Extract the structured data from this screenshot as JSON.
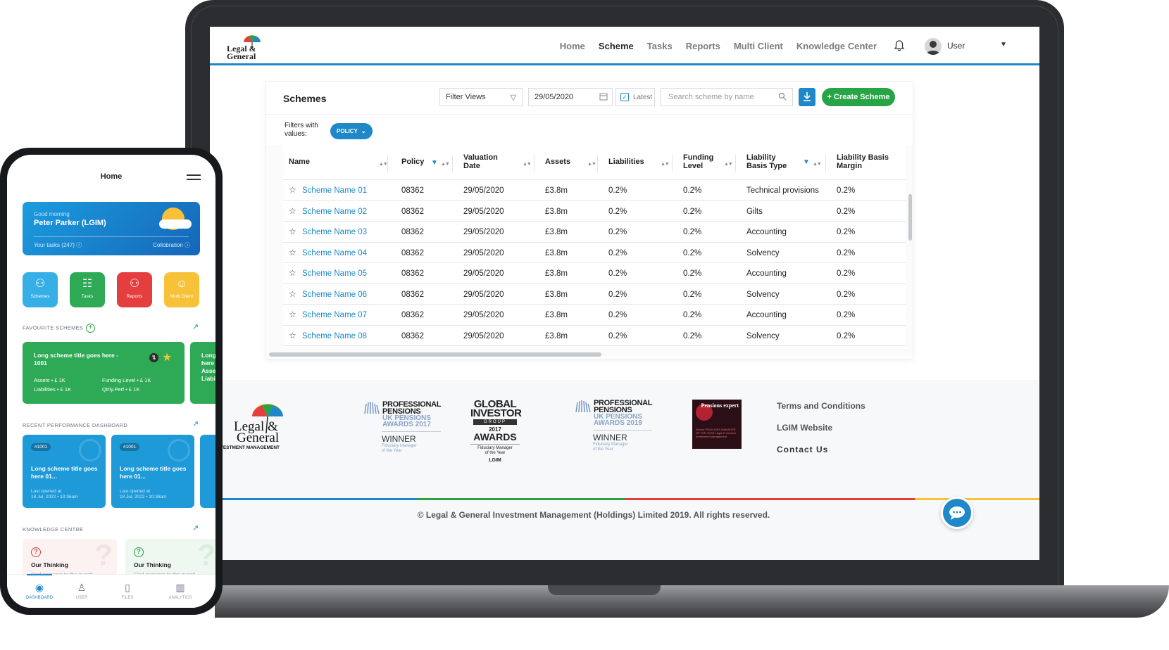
{
  "colors": {
    "primary": "#1e88c8",
    "create_green": "#27a445",
    "fav_green": "#2eaa57",
    "red": "#e53e3e",
    "yellow": "#f8c238"
  },
  "laptop": {
    "brand": {
      "line1": "Legal &",
      "line2": "General"
    },
    "nav": {
      "links": [
        {
          "label": "Home"
        },
        {
          "label": "Scheme",
          "active": true
        },
        {
          "label": "Tasks"
        },
        {
          "label": "Reports"
        },
        {
          "label": "Multi Client"
        },
        {
          "label": "Knowledge Center"
        }
      ],
      "icons": {
        "notifications": "bell-icon",
        "user": "user-avatar",
        "caret": "caret-down-icon"
      },
      "user_name": "User"
    },
    "schemes": {
      "title": "Schemes",
      "filter_views": "Filter Views",
      "date": "29/05/2020",
      "latest_label": "Latest",
      "latest_checked": true,
      "search_placeholder": "Search scheme by name",
      "create_label": "+ Create Scheme",
      "filters_label": "Filters with values:",
      "policy_chip": "POLICY",
      "columns": [
        "Name",
        "Policy",
        "Valuation Date",
        "Assets",
        "Liabilities",
        "Funding Level",
        "Liability Basis Type",
        "Liability Basis Margin"
      ],
      "filtered_columns": [
        "Policy",
        "Liability Basis Type"
      ],
      "rows": [
        {
          "name": "Scheme Name 01",
          "policy": "08362",
          "valuation_date": "29/05/2020",
          "assets": "£3.8m",
          "liabilities": "0.2%",
          "funding_level": "0.2%",
          "basis_type": "Technical provisions",
          "basis_margin": "0.2%"
        },
        {
          "name": "Scheme Name 02",
          "policy": "08362",
          "valuation_date": "29/05/2020",
          "assets": "£3.8m",
          "liabilities": "0.2%",
          "funding_level": "0.2%",
          "basis_type": "Gilts",
          "basis_margin": "0.2%"
        },
        {
          "name": "Scheme Name 03",
          "policy": "08362",
          "valuation_date": "29/05/2020",
          "assets": "£3.8m",
          "liabilities": "0.2%",
          "funding_level": "0.2%",
          "basis_type": "Accounting",
          "basis_margin": "0.2%"
        },
        {
          "name": "Scheme Name 04",
          "policy": "08362",
          "valuation_date": "29/05/2020",
          "assets": "£3.8m",
          "liabilities": "0.2%",
          "funding_level": "0.2%",
          "basis_type": "Solvency",
          "basis_margin": "0.2%"
        },
        {
          "name": "Scheme Name 05",
          "policy": "08362",
          "valuation_date": "29/05/2020",
          "assets": "£3.8m",
          "liabilities": "0.2%",
          "funding_level": "0.2%",
          "basis_type": "Accounting",
          "basis_margin": "0.2%"
        },
        {
          "name": "Scheme Name 06",
          "policy": "08362",
          "valuation_date": "29/05/2020",
          "assets": "£3.8m",
          "liabilities": "0.2%",
          "funding_level": "0.2%",
          "basis_type": "Solvency",
          "basis_margin": "0.2%"
        },
        {
          "name": "Scheme Name 07",
          "policy": "08362",
          "valuation_date": "29/05/2020",
          "assets": "£3.8m",
          "liabilities": "0.2%",
          "funding_level": "0.2%",
          "basis_type": "Accounting",
          "basis_margin": "0.2%"
        },
        {
          "name": "Scheme Name 08",
          "policy": "08362",
          "valuation_date": "29/05/2020",
          "assets": "£3.8m",
          "liabilities": "0.2%",
          "funding_level": "0.2%",
          "basis_type": "Solvency",
          "basis_margin": "0.2%"
        }
      ]
    },
    "footer": {
      "logo": {
        "line1": "Legal &",
        "line2": "General",
        "sub": "INVESTMENT MANAGEMENT"
      },
      "award_2017": {
        "line1": "PROFESSIONAL",
        "line2": "PENSIONS",
        "line3": "UK PENSIONS",
        "line4": "AWARDS 2017",
        "winner": "WINNER",
        "fm1": "Fiduciary Manager",
        "fm2": "of the Year"
      },
      "global_investor": {
        "line1": "GLOBAL",
        "line2": "INVESTOR",
        "group": "GROUP",
        "year": "2017",
        "awards": "AWARDS",
        "fm1": "Fiduciary Manager",
        "fm2": "of the Year",
        "org": "LGIM"
      },
      "award_2019": {
        "line1": "PROFESSIONAL",
        "line2": "PENSIONS",
        "line3": "UK PENSIONS",
        "line4": "AWARDS 2019",
        "winner": "WINNER",
        "fm1": "Fiduciary Manager",
        "fm2": "of the Year"
      },
      "pensions_expert": {
        "title": "Pensions expert",
        "small": "Winner FIDUCIARY MANAGER OF THE YEAR Legal & General Investment Management"
      },
      "links": [
        "Terms and Conditions",
        "LGIM Website",
        "Contact Us"
      ],
      "copyright": "© Legal & General Investment Management (Holdings) Limited 2019. All rights reserved.",
      "chat_icon": "chat-bubble-icon"
    }
  },
  "phone": {
    "title": "Home",
    "greeting": "Good morning",
    "user": "Peter Parker (LGIM)",
    "tasks_link": "Your tasks (247) ⓘ",
    "collab_link": "Collobration ⓘ",
    "tiles": [
      {
        "label": "Schemes",
        "color": "#36aee6"
      },
      {
        "label": "Tasks",
        "color": "#2eaa57"
      },
      {
        "label": "Reports",
        "color": "#e53e3e"
      },
      {
        "label": "Multi Client",
        "color": "#f8c238"
      }
    ],
    "favourites_heading": "FAVOURITE SCHEMES",
    "favourite": {
      "title": "Long scheme title goes here - 1001",
      "assets": "Assets • £ 1K",
      "liabilities": "Liabilities • £ 1K",
      "funding": "Funding Level • £ 1K",
      "qtrly": "Qtrly.Perf • £ 1K",
      "peek": "Long here Asse Liabi"
    },
    "performance_heading": "RECENT PERFORMANCE DASHBOARD",
    "performance_cards": [
      {
        "badge": "#1001",
        "title": "Long scheme title goes here 01...",
        "last1": "Last opened at",
        "last2": "18 Jul, 2022 • 10:36am"
      },
      {
        "badge": "#1001",
        "title": "Long scheme title goes here 01...",
        "last1": "Last opened at",
        "last2": "18 Jul, 2022 • 10:36am"
      }
    ],
    "knowledge_heading": "KNOWLEDGE CENTRE",
    "knowledge_cards": [
      {
        "title": "Our Thinking",
        "sub": "Find answers to the questi"
      },
      {
        "title": "Our Thinking",
        "sub": "Find answers to the questi"
      }
    ],
    "tabbar": [
      {
        "label": "DASHBOARD",
        "active": true
      },
      {
        "label": "USER"
      },
      {
        "label": "FILES"
      },
      {
        "label": "ANALYTICS"
      }
    ]
  }
}
